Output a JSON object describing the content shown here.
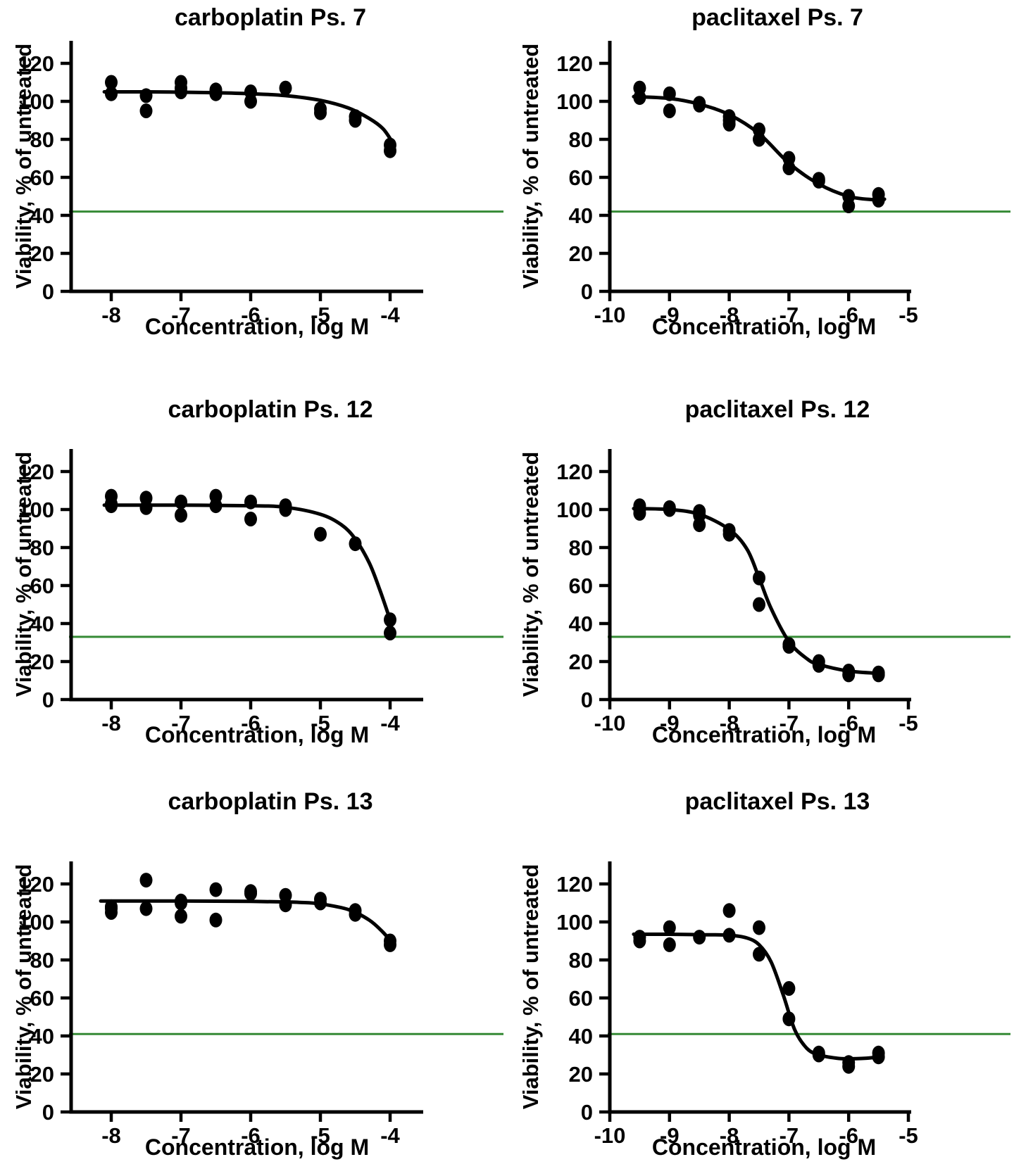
{
  "figure": {
    "background": "#ffffff",
    "marker_color": "#000000",
    "curve_color": "#000000",
    "threshold_line_color": "#358a35",
    "axis_color": "#000000",
    "marker_shape": "filled-circle"
  },
  "chart_data": [
    {
      "type": "scatter",
      "title": "carboplatin Ps. 7",
      "xlabel": "Concentration, log M",
      "ylabel": "Viability, % of untreated",
      "x_ticks": [
        -8,
        -7,
        -6,
        -5,
        -4
      ],
      "y_ticks": [
        0,
        20,
        40,
        60,
        80,
        100,
        120
      ],
      "xlim": [
        -8.6,
        -3.5
      ],
      "ylim": [
        0,
        130
      ],
      "grid": false,
      "legend": "none",
      "green_line_y": 42,
      "points": [
        [
          -8,
          110
        ],
        [
          -8,
          104
        ],
        [
          -7.5,
          103
        ],
        [
          -7.5,
          95
        ],
        [
          -7,
          110
        ],
        [
          -7,
          107
        ],
        [
          -7,
          105
        ],
        [
          -6.5,
          106
        ],
        [
          -6.5,
          104
        ],
        [
          -6,
          105
        ],
        [
          -6,
          100
        ],
        [
          -5.5,
          107
        ],
        [
          -5,
          96
        ],
        [
          -5,
          94
        ],
        [
          -4.5,
          92
        ],
        [
          -4.5,
          90
        ],
        [
          -4,
          77
        ],
        [
          -4,
          74
        ]
      ],
      "curve": [
        [
          -8.1,
          105
        ],
        [
          -7.5,
          105
        ],
        [
          -7,
          104.8
        ],
        [
          -6.5,
          104.5
        ],
        [
          -6,
          104
        ],
        [
          -5.5,
          103
        ],
        [
          -5,
          100.5
        ],
        [
          -4.6,
          96.5
        ],
        [
          -4.3,
          91
        ],
        [
          -4.1,
          85.5
        ],
        [
          -3.95,
          77.5
        ]
      ]
    },
    {
      "type": "scatter",
      "title": "paclitaxel Ps. 7",
      "xlabel": "Concentration, log M",
      "ylabel": "Viability, % of untreated",
      "x_ticks": [
        -10,
        -9,
        -8,
        -7,
        -6,
        -5
      ],
      "y_ticks": [
        0,
        20,
        40,
        60,
        80,
        100,
        120
      ],
      "xlim": [
        -10,
        -4.95
      ],
      "ylim": [
        0,
        130
      ],
      "grid": false,
      "legend": "none",
      "green_line_y": 42,
      "points": [
        [
          -9.5,
          107
        ],
        [
          -9.5,
          102
        ],
        [
          -9,
          104
        ],
        [
          -9,
          95
        ],
        [
          -8.5,
          99
        ],
        [
          -8.5,
          98
        ],
        [
          -8,
          92
        ],
        [
          -8,
          90
        ],
        [
          -8,
          88
        ],
        [
          -7.5,
          85
        ],
        [
          -7.5,
          80
        ],
        [
          -7,
          70
        ],
        [
          -7,
          65
        ],
        [
          -6.5,
          59
        ],
        [
          -6.5,
          58
        ],
        [
          -6,
          50
        ],
        [
          -6,
          45
        ],
        [
          -5.5,
          51
        ],
        [
          -5.5,
          48
        ]
      ],
      "curve": [
        [
          -9.6,
          102.5
        ],
        [
          -9,
          101.5
        ],
        [
          -8.5,
          98.5
        ],
        [
          -8,
          93
        ],
        [
          -7.5,
          83
        ],
        [
          -7,
          67.5
        ],
        [
          -6.5,
          56.5
        ],
        [
          -6,
          50
        ],
        [
          -5.6,
          48.3
        ],
        [
          -5.4,
          48.5
        ]
      ]
    },
    {
      "type": "scatter",
      "title": "carboplatin Ps. 12",
      "xlabel": "Concentration, log M",
      "ylabel": "Viability, % of untreated",
      "x_ticks": [
        -8,
        -7,
        -6,
        -5,
        -4
      ],
      "y_ticks": [
        0,
        20,
        40,
        60,
        80,
        100,
        120
      ],
      "xlim": [
        -8.6,
        -3.5
      ],
      "ylim": [
        0,
        130
      ],
      "grid": false,
      "legend": "none",
      "green_line_y": 33,
      "points": [
        [
          -8,
          107
        ],
        [
          -8,
          103
        ],
        [
          -8,
          102
        ],
        [
          -7.5,
          106
        ],
        [
          -7.5,
          101
        ],
        [
          -7,
          104
        ],
        [
          -7,
          97
        ],
        [
          -6.5,
          107
        ],
        [
          -6.5,
          102
        ],
        [
          -6,
          104
        ],
        [
          -6,
          95
        ],
        [
          -5.5,
          102
        ],
        [
          -5.5,
          100
        ],
        [
          -5,
          87
        ],
        [
          -4.5,
          82
        ],
        [
          -4,
          42
        ],
        [
          -4,
          35
        ]
      ],
      "curve": [
        [
          -8.1,
          102.3
        ],
        [
          -7,
          102.3
        ],
        [
          -6,
          102
        ],
        [
          -5.5,
          101.2
        ],
        [
          -5,
          97.5
        ],
        [
          -4.7,
          92
        ],
        [
          -4.5,
          84.5
        ],
        [
          -4.3,
          72
        ],
        [
          -4.15,
          58
        ],
        [
          -4,
          42
        ]
      ]
    },
    {
      "type": "scatter",
      "title": "paclitaxel Ps. 12",
      "xlabel": "Concentration, log M",
      "ylabel": "Viability, % of untreated",
      "x_ticks": [
        -10,
        -9,
        -8,
        -7,
        -6,
        -5
      ],
      "y_ticks": [
        0,
        20,
        40,
        60,
        80,
        100,
        120
      ],
      "xlim": [
        -10,
        -4.95
      ],
      "ylim": [
        0,
        130
      ],
      "grid": false,
      "legend": "none",
      "green_line_y": 33,
      "points": [
        [
          -9.5,
          102
        ],
        [
          -9.5,
          100
        ],
        [
          -9.5,
          98
        ],
        [
          -9,
          101
        ],
        [
          -9,
          100
        ],
        [
          -8.5,
          99
        ],
        [
          -8.5,
          97
        ],
        [
          -8.5,
          92
        ],
        [
          -8,
          89
        ],
        [
          -8,
          87
        ],
        [
          -7.5,
          64
        ],
        [
          -7.5,
          50
        ],
        [
          -7,
          29
        ],
        [
          -7,
          28
        ],
        [
          -6.5,
          20
        ],
        [
          -6.5,
          18
        ],
        [
          -6,
          15
        ],
        [
          -6,
          13
        ],
        [
          -5.5,
          14
        ],
        [
          -5.5,
          13
        ]
      ],
      "curve": [
        [
          -9.6,
          100.5
        ],
        [
          -9,
          100
        ],
        [
          -8.5,
          97.5
        ],
        [
          -8,
          89.5
        ],
        [
          -7.7,
          79
        ],
        [
          -7.5,
          64
        ],
        [
          -7.3,
          48
        ],
        [
          -7,
          30.5
        ],
        [
          -6.7,
          21.5
        ],
        [
          -6.5,
          18.5
        ],
        [
          -6,
          15
        ],
        [
          -5.5,
          13.8
        ],
        [
          -5.45,
          13.8
        ]
      ]
    },
    {
      "type": "scatter",
      "title": "carboplatin Ps. 13",
      "xlabel": "Concentration, log M",
      "ylabel": "Viability, % of untreated",
      "x_ticks": [
        -8,
        -7,
        -6,
        -5,
        -4
      ],
      "y_ticks": [
        0,
        20,
        40,
        60,
        80,
        100,
        120
      ],
      "xlim": [
        -8.6,
        -3.5
      ],
      "ylim": [
        0,
        130
      ],
      "grid": false,
      "legend": "none",
      "green_line_y": 41,
      "points": [
        [
          -8,
          108
        ],
        [
          -8,
          107
        ],
        [
          -8,
          105
        ],
        [
          -7.5,
          122
        ],
        [
          -7.5,
          107
        ],
        [
          -7,
          111
        ],
        [
          -7,
          110
        ],
        [
          -7,
          103
        ],
        [
          -6.5,
          117
        ],
        [
          -6.5,
          101
        ],
        [
          -6,
          116
        ],
        [
          -6,
          115
        ],
        [
          -5.5,
          114
        ],
        [
          -5.5,
          109
        ],
        [
          -5,
          112
        ],
        [
          -5,
          110
        ],
        [
          -4.5,
          106
        ],
        [
          -4.5,
          104
        ],
        [
          -4,
          90
        ],
        [
          -4,
          88
        ]
      ],
      "curve": [
        [
          -8.15,
          111
        ],
        [
          -7,
          111
        ],
        [
          -6,
          110.8
        ],
        [
          -5.3,
          110.3
        ],
        [
          -5,
          109.5
        ],
        [
          -4.6,
          106.5
        ],
        [
          -4.3,
          101
        ],
        [
          -4.1,
          94.5
        ],
        [
          -3.97,
          89
        ]
      ]
    },
    {
      "type": "scatter",
      "title": "paclitaxel Ps. 13",
      "xlabel": "Concentration, log M",
      "ylabel": "Viability, % of untreated",
      "x_ticks": [
        -10,
        -9,
        -8,
        -7,
        -6,
        -5
      ],
      "y_ticks": [
        0,
        20,
        40,
        60,
        80,
        100,
        120
      ],
      "xlim": [
        -10,
        -4.95
      ],
      "ylim": [
        0,
        130
      ],
      "grid": false,
      "legend": "none",
      "green_line_y": 41,
      "points": [
        [
          -9.5,
          92
        ],
        [
          -9.5,
          90
        ],
        [
          -9,
          97
        ],
        [
          -9,
          88
        ],
        [
          -8.5,
          92
        ],
        [
          -8,
          106
        ],
        [
          -8,
          93
        ],
        [
          -7.5,
          97
        ],
        [
          -7.5,
          83
        ],
        [
          -7,
          65
        ],
        [
          -7,
          49
        ],
        [
          -6.5,
          31
        ],
        [
          -6.5,
          30
        ],
        [
          -6,
          26
        ],
        [
          -6,
          24
        ],
        [
          -5.5,
          31
        ],
        [
          -5.5,
          29
        ]
      ],
      "curve": [
        [
          -9.6,
          93.5
        ],
        [
          -9,
          93.5
        ],
        [
          -8.5,
          93.3
        ],
        [
          -8,
          93
        ],
        [
          -7.7,
          91.5
        ],
        [
          -7.5,
          88
        ],
        [
          -7.3,
          79
        ],
        [
          -7.1,
          62
        ],
        [
          -6.9,
          43
        ],
        [
          -6.7,
          33.5
        ],
        [
          -6.5,
          30
        ],
        [
          -6.2,
          28.3
        ],
        [
          -6,
          28
        ],
        [
          -5.7,
          28.3
        ],
        [
          -5.45,
          29
        ]
      ]
    }
  ]
}
